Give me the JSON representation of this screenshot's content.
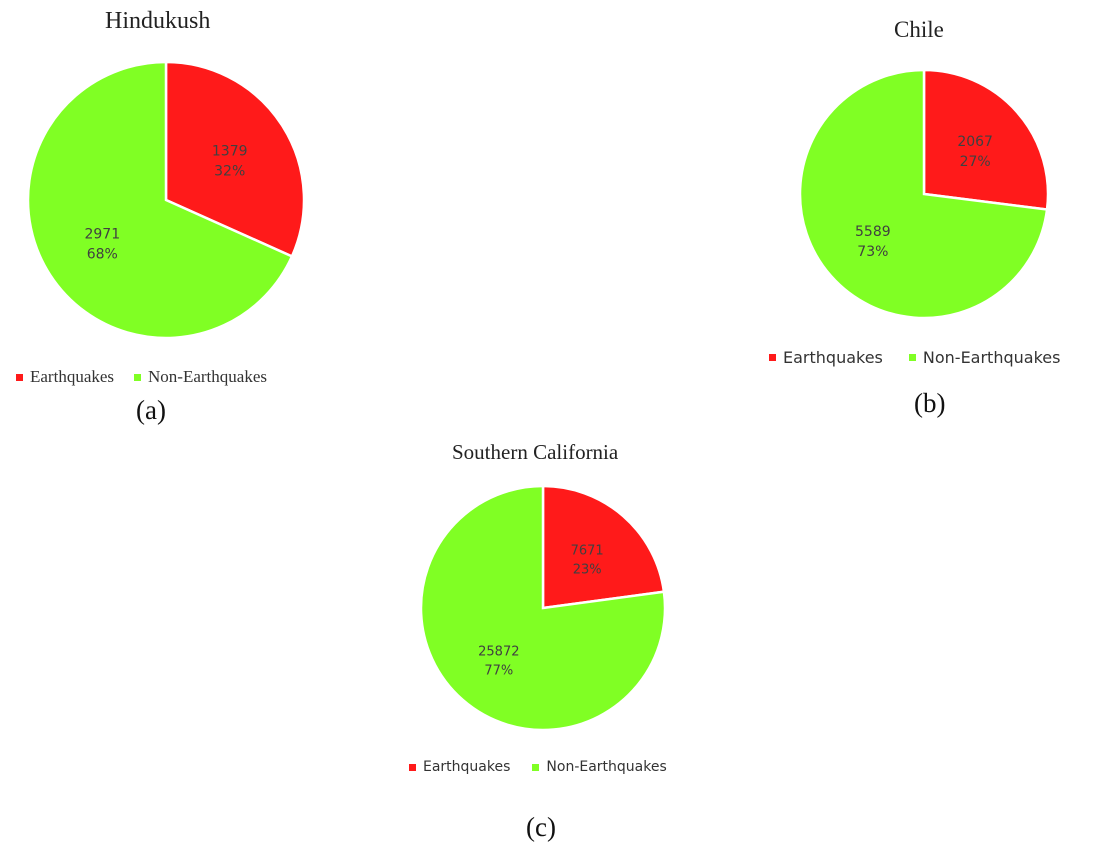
{
  "chart_data": [
    {
      "type": "pie",
      "title": "Hindukush",
      "caption": "(a)",
      "categories": [
        "Earthquakes",
        "Non-Earthquakes"
      ],
      "values": [
        1379,
        2971
      ],
      "percent_labels": [
        "32%",
        "68%"
      ],
      "colors": [
        "#ff1a1a",
        "#80ff24"
      ],
      "legend": "bottom"
    },
    {
      "type": "pie",
      "title": "Chile",
      "caption": "(b)",
      "categories": [
        "Earthquakes",
        "Non-Earthquakes"
      ],
      "values": [
        2067,
        5589
      ],
      "percent_labels": [
        "27%",
        "73%"
      ],
      "colors": [
        "#ff1a1a",
        "#80ff24"
      ],
      "legend": "bottom"
    },
    {
      "type": "pie",
      "title": "Southern California",
      "caption": "(c)",
      "categories": [
        "Earthquakes",
        "Non-Earthquakes"
      ],
      "values": [
        7671,
        25872
      ],
      "percent_labels": [
        "23%",
        "77%"
      ],
      "colors": [
        "#ff1a1a",
        "#80ff24"
      ],
      "legend": "bottom"
    }
  ]
}
